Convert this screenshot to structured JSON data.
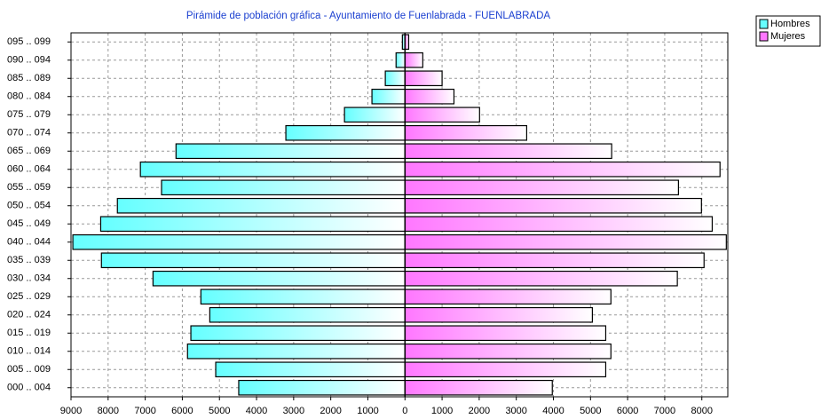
{
  "chart_data": {
    "type": "pyramid",
    "title": "Pirámide de población gráfica - Ayuntamiento de Fuenlabrada - FUENLABRADA",
    "categories": [
      "000 .. 004",
      "005 .. 009",
      "010 .. 014",
      "015 .. 019",
      "020 .. 024",
      "025 .. 029",
      "030 .. 034",
      "035 .. 039",
      "040 .. 044",
      "045 .. 049",
      "050 .. 054",
      "055 .. 059",
      "060 .. 064",
      "065 .. 069",
      "070 .. 074",
      "075 .. 079",
      "080 .. 084",
      "085 .. 089",
      "090 .. 094",
      "095 .. 099"
    ],
    "series": [
      {
        "name": "Hombres",
        "color": "#66ffff",
        "side": "left",
        "values": [
          4480,
          5100,
          5860,
          5770,
          5260,
          5500,
          6790,
          8180,
          8950,
          8200,
          7750,
          6560,
          7130,
          6170,
          3210,
          1630,
          890,
          530,
          240,
          70
        ]
      },
      {
        "name": "Mujeres",
        "color": "#ff77ff",
        "side": "right",
        "values": [
          3970,
          5410,
          5550,
          5410,
          5050,
          5550,
          7340,
          8060,
          8660,
          8280,
          7990,
          7370,
          8490,
          5570,
          3280,
          2010,
          1320,
          1000,
          480,
          100
        ]
      }
    ],
    "xlim": [
      -9000,
      8700
    ],
    "xticks": [
      {
        "value": -9000,
        "label": "9000"
      },
      {
        "value": -8000,
        "label": "8000"
      },
      {
        "value": -7000,
        "label": "7000"
      },
      {
        "value": -6000,
        "label": "6000"
      },
      {
        "value": -5000,
        "label": "5000"
      },
      {
        "value": -4000,
        "label": "4000"
      },
      {
        "value": -3000,
        "label": "3000"
      },
      {
        "value": -2000,
        "label": "2000"
      },
      {
        "value": -1000,
        "label": "1000"
      },
      0,
      1000,
      2000,
      3000,
      4000,
      5000,
      6000,
      7000,
      8000
    ],
    "grid": true,
    "legend": "top-right"
  }
}
